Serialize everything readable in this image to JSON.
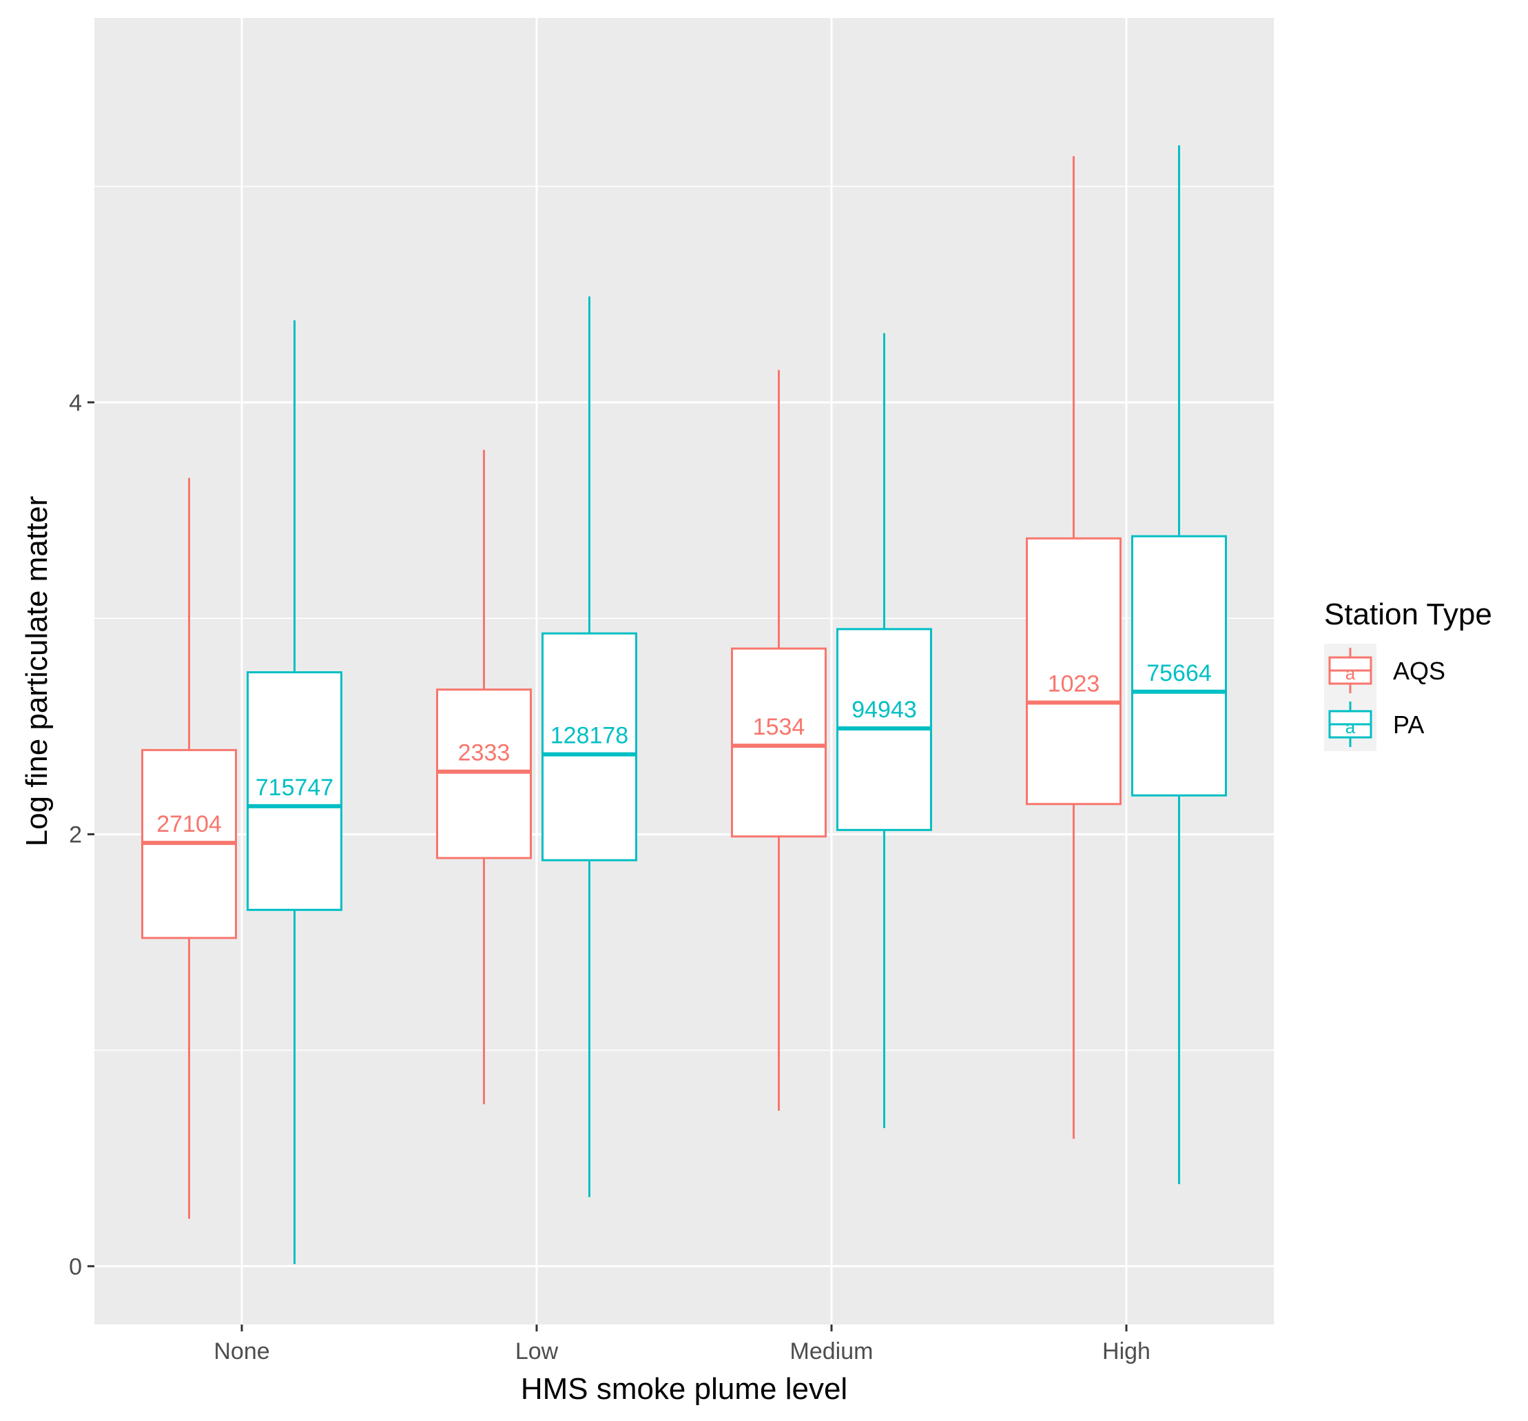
{
  "chart_data": {
    "type": "boxplot",
    "title": "",
    "xlabel": "HMS smoke plume level",
    "ylabel": "Log fine particulate matter",
    "categories": [
      "None",
      "Low",
      "Medium",
      "High"
    ],
    "ylim": [
      -0.27,
      5.78
    ],
    "yticks": [
      0,
      2,
      4
    ],
    "ytick_labels": [
      "0",
      "2",
      "4"
    ],
    "grid": true,
    "legend": {
      "title": "Station Type",
      "position": "right",
      "entries": [
        "AQS",
        "PA"
      ],
      "key_glyph": "a"
    },
    "series": [
      {
        "name": "AQS",
        "color": "#F8766D",
        "boxes": [
          {
            "category": "None",
            "min": 0.22,
            "q1": 1.52,
            "median": 1.96,
            "q3": 2.39,
            "max": 3.65,
            "count_label": "27104"
          },
          {
            "category": "Low",
            "min": 0.75,
            "q1": 1.89,
            "median": 2.29,
            "q3": 2.67,
            "max": 3.78,
            "count_label": "2333"
          },
          {
            "category": "Medium",
            "min": 0.72,
            "q1": 1.99,
            "median": 2.41,
            "q3": 2.86,
            "max": 4.15,
            "count_label": "1534"
          },
          {
            "category": "High",
            "min": 0.59,
            "q1": 2.14,
            "median": 2.61,
            "q3": 3.37,
            "max": 5.14,
            "count_label": "1023"
          }
        ]
      },
      {
        "name": "PA",
        "color": "#00BFC4",
        "boxes": [
          {
            "category": "None",
            "min": 0.01,
            "q1": 1.65,
            "median": 2.13,
            "q3": 2.75,
            "max": 4.38,
            "count_label": "715747"
          },
          {
            "category": "Low",
            "min": 0.32,
            "q1": 1.88,
            "median": 2.37,
            "q3": 2.93,
            "max": 4.49,
            "count_label": "128178"
          },
          {
            "category": "Medium",
            "min": 0.64,
            "q1": 2.02,
            "median": 2.49,
            "q3": 2.95,
            "max": 4.32,
            "count_label": "94943"
          },
          {
            "category": "High",
            "min": 0.38,
            "q1": 2.18,
            "median": 2.66,
            "q3": 3.38,
            "max": 5.19,
            "count_label": "75664"
          }
        ]
      }
    ]
  }
}
